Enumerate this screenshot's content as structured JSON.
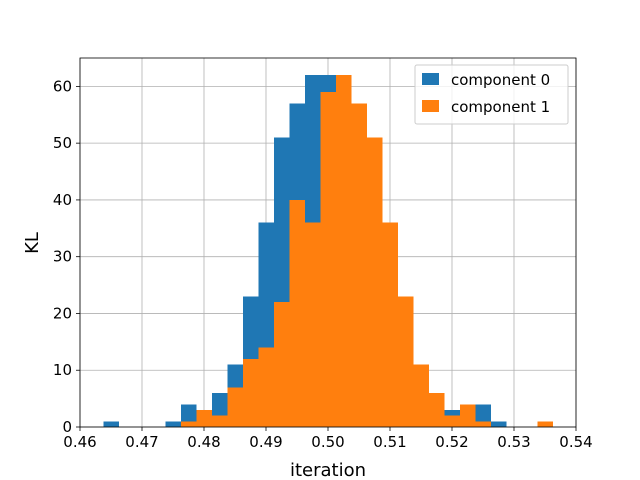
{
  "chart_data": {
    "type": "histogram",
    "xlabel": "iteration",
    "ylabel": "KL",
    "xlim": [
      0.46,
      0.54
    ],
    "ylim": [
      0,
      65
    ],
    "xticks": [
      "0.46",
      "0.47",
      "0.48",
      "0.49",
      "0.50",
      "0.51",
      "0.52",
      "0.53",
      "0.54"
    ],
    "yticks": [
      "0",
      "10",
      "20",
      "30",
      "40",
      "50",
      "60"
    ],
    "grid": true,
    "legend_position": "top-right",
    "series": [
      {
        "name": "component 0",
        "color": "#1f77b4",
        "bin_width": 0.0025,
        "bins": [
          {
            "x0": 0.4638,
            "count": 1
          },
          {
            "x0": 0.4738,
            "count": 1
          },
          {
            "x0": 0.4763,
            "count": 4
          },
          {
            "x0": 0.4788,
            "count": 3
          },
          {
            "x0": 0.4813,
            "count": 6
          },
          {
            "x0": 0.4838,
            "count": 11
          },
          {
            "x0": 0.4863,
            "count": 23
          },
          {
            "x0": 0.4888,
            "count": 36
          },
          {
            "x0": 0.4913,
            "count": 51
          },
          {
            "x0": 0.4938,
            "count": 57
          },
          {
            "x0": 0.4963,
            "count": 62
          },
          {
            "x0": 0.4988,
            "count": 62
          },
          {
            "x0": 0.5013,
            "count": 62
          },
          {
            "x0": 0.5038,
            "count": 57
          },
          {
            "x0": 0.5063,
            "count": 51
          },
          {
            "x0": 0.5088,
            "count": 36
          },
          {
            "x0": 0.5113,
            "count": 23
          },
          {
            "x0": 0.5138,
            "count": 11
          },
          {
            "x0": 0.5163,
            "count": 6
          },
          {
            "x0": 0.5188,
            "count": 3
          },
          {
            "x0": 0.5213,
            "count": 3
          },
          {
            "x0": 0.5238,
            "count": 4
          },
          {
            "x0": 0.5263,
            "count": 1
          }
        ]
      },
      {
        "name": "component 1",
        "color": "#ff7f0e",
        "bin_width": 0.0025,
        "bins": [
          {
            "x0": 0.4763,
            "count": 1
          },
          {
            "x0": 0.4788,
            "count": 3
          },
          {
            "x0": 0.4813,
            "count": 2
          },
          {
            "x0": 0.4838,
            "count": 7
          },
          {
            "x0": 0.4863,
            "count": 12
          },
          {
            "x0": 0.4888,
            "count": 14
          },
          {
            "x0": 0.4913,
            "count": 22
          },
          {
            "x0": 0.4938,
            "count": 40
          },
          {
            "x0": 0.4963,
            "count": 36
          },
          {
            "x0": 0.4988,
            "count": 59
          },
          {
            "x0": 0.5013,
            "count": 62
          },
          {
            "x0": 0.5038,
            "count": 57
          },
          {
            "x0": 0.5063,
            "count": 51
          },
          {
            "x0": 0.5088,
            "count": 36
          },
          {
            "x0": 0.5113,
            "count": 23
          },
          {
            "x0": 0.5138,
            "count": 11
          },
          {
            "x0": 0.5163,
            "count": 6
          },
          {
            "x0": 0.5188,
            "count": 2
          },
          {
            "x0": 0.5213,
            "count": 4
          },
          {
            "x0": 0.5238,
            "count": 1
          },
          {
            "x0": 0.5338,
            "count": 1
          }
        ]
      }
    ]
  }
}
